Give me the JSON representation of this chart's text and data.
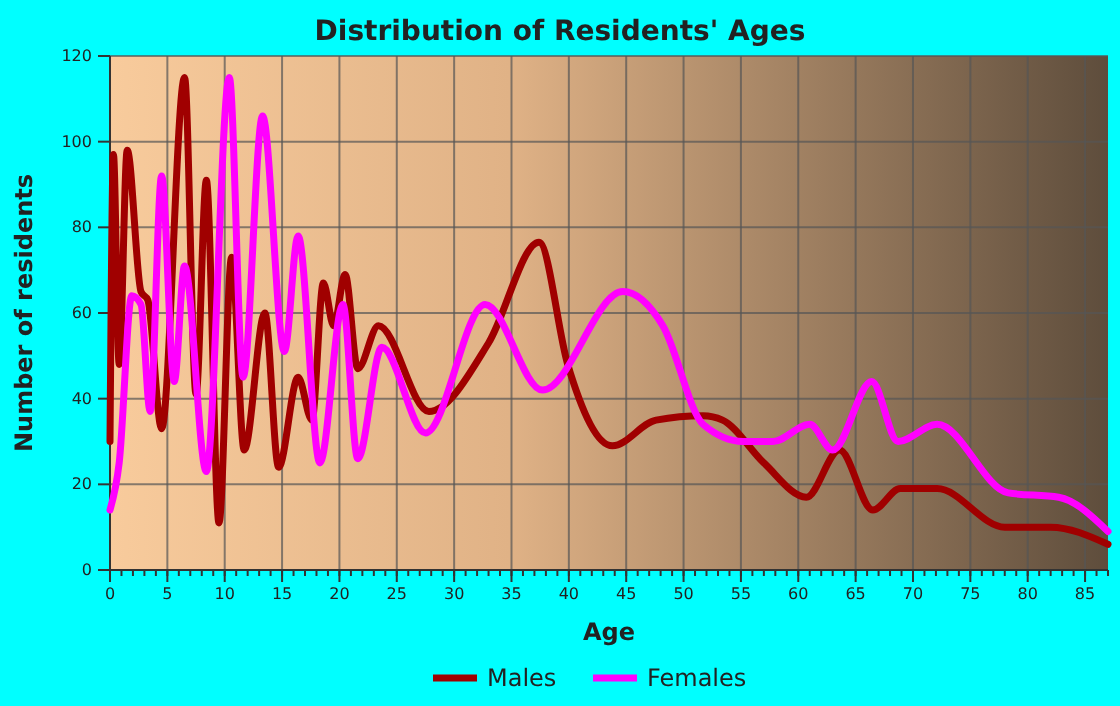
{
  "chart_data": {
    "type": "line",
    "title": "Distribution of Residents' Ages",
    "xlabel": "Age",
    "ylabel": "Number of residents",
    "xlim": [
      0,
      87
    ],
    "xticks": [
      0,
      5,
      10,
      15,
      20,
      25,
      30,
      35,
      40,
      45,
      50,
      55,
      60,
      65,
      70,
      75,
      80,
      85
    ],
    "ylim": [
      0,
      120
    ],
    "yticks": [
      0,
      20,
      40,
      60,
      80,
      100,
      120
    ],
    "grid": true,
    "legend": "bottom",
    "series": [
      {
        "name": "Males",
        "color": "#a00000",
        "x": [
          0,
          0.3,
          0.8,
          1.5,
          2.7,
          3.3,
          4.5,
          6.5,
          7.5,
          8.4,
          9.5,
          10.6,
          11.7,
          13.5,
          14.7,
          16.4,
          17.6,
          18.6,
          19.5,
          20.5,
          21.6,
          23.4,
          27.8,
          33,
          37.4,
          39.9,
          43.8,
          47.6,
          51.7,
          53.4,
          57,
          60.7,
          63.6,
          66.5,
          68.9,
          72.1,
          78,
          82,
          87
        ],
        "values": [
          30,
          97,
          48,
          98,
          65,
          63,
          33,
          115,
          41,
          91,
          11,
          73,
          28,
          60,
          24,
          45,
          35,
          67,
          57,
          69,
          47,
          57,
          37,
          53,
          76.5,
          48,
          29,
          35,
          36,
          35,
          25,
          17,
          28,
          14,
          19,
          19,
          10,
          10,
          6
        ]
      },
      {
        "name": "Females",
        "color": "#ff00ff",
        "x": [
          0,
          0.8,
          1.9,
          2.7,
          3.5,
          4.5,
          5.6,
          6.5,
          8.4,
          10.4,
          11.6,
          13.3,
          15.2,
          16.4,
          18.3,
          20.3,
          21.6,
          23.7,
          27.5,
          32.7,
          37.7,
          44.7,
          48.2,
          51.7,
          55.2,
          57.8,
          61,
          63,
          66.4,
          68.7,
          72.1,
          78.3,
          82.7,
          87
        ],
        "values": [
          14,
          25,
          64,
          62,
          37,
          92,
          44,
          71,
          23,
          115,
          45,
          106,
          51,
          78,
          25,
          62,
          26,
          52,
          32,
          62,
          42,
          65,
          57,
          34,
          30,
          30,
          34,
          28,
          44,
          30,
          34,
          18,
          17,
          9
        ]
      }
    ]
  }
}
